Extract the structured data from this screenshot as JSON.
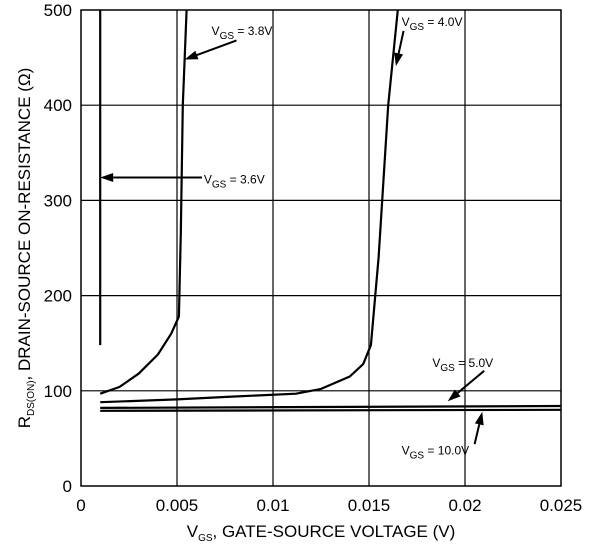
{
  "chart_data": {
    "type": "line",
    "xlabel": {
      "main": "V",
      "sub": "GS",
      "rest": ", GATE-SOURCE VOLTAGE (V)"
    },
    "ylabel": {
      "main": "R",
      "sub": "DS(ON)",
      "rest": ", DRAIN-SOURCE ON-RESISTANCE (Ω)"
    },
    "xlim": [
      0,
      0.025
    ],
    "ylim": [
      0,
      500
    ],
    "x_ticks": [
      0,
      0.005,
      0.01,
      0.015,
      0.02,
      0.025
    ],
    "x_tick_labels": [
      "0",
      "0.005",
      "0.01",
      "0.015",
      "0.02",
      "0.025"
    ],
    "y_ticks": [
      0,
      100,
      200,
      300,
      400,
      500
    ],
    "y_tick_labels": [
      "0",
      "100",
      "200",
      "300",
      "400",
      "500"
    ],
    "grid": true,
    "series": [
      {
        "id": "vgs-3-6",
        "label": {
          "main": "V",
          "sub": "GS",
          "rest": " = 3.6V"
        },
        "points": [
          [
            0.001,
            148
          ],
          [
            0.001,
            500
          ]
        ],
        "arrow": {
          "from": [
            0.0063,
            324
          ],
          "to": [
            0.001,
            324
          ]
        },
        "label_at": [
          0.0064,
          318
        ]
      },
      {
        "id": "vgs-3-8",
        "label": {
          "main": "V",
          "sub": "GS",
          "rest": " = 3.8V"
        },
        "points": [
          [
            0.001,
            97
          ],
          [
            0.002,
            104
          ],
          [
            0.003,
            118
          ],
          [
            0.004,
            138
          ],
          [
            0.0047,
            160
          ],
          [
            0.0051,
            178
          ],
          [
            0.0052,
            265
          ],
          [
            0.0053,
            400
          ],
          [
            0.0055,
            500
          ]
        ],
        "arrow": {
          "from": [
            0.0081,
            468
          ],
          "to": [
            0.0054,
            448
          ]
        },
        "label_at": [
          0.0068,
          474
        ]
      },
      {
        "id": "vgs-4-0",
        "label": {
          "main": "V",
          "sub": "GS",
          "rest": " = 4.0V"
        },
        "points": [
          [
            0.001,
            88
          ],
          [
            0.005,
            91
          ],
          [
            0.008,
            94
          ],
          [
            0.0112,
            97
          ],
          [
            0.0125,
            102
          ],
          [
            0.014,
            115
          ],
          [
            0.0147,
            128
          ],
          [
            0.0151,
            148
          ],
          [
            0.0155,
            240
          ],
          [
            0.016,
            400
          ],
          [
            0.0165,
            500
          ]
        ],
        "arrow": {
          "from": [
            0.0168,
            478
          ],
          "to": [
            0.0164,
            441
          ]
        },
        "label_at": [
          0.0167,
          483
        ]
      },
      {
        "id": "vgs-5-0",
        "label": {
          "main": "V",
          "sub": "GS",
          "rest": " = 5.0V"
        },
        "points": [
          [
            0.001,
            82
          ],
          [
            0.025,
            84
          ]
        ],
        "arrow": {
          "from": [
            0.021,
            121
          ],
          "to": [
            0.0191,
            89
          ]
        },
        "label_at": [
          0.0183,
          125
        ]
      },
      {
        "id": "vgs-10-0",
        "label": {
          "main": "V",
          "sub": "GS",
          "rest": " = 10.0V"
        },
        "points": [
          [
            0.001,
            79
          ],
          [
            0.025,
            80
          ]
        ],
        "arrow": {
          "from": [
            0.0205,
            44
          ],
          "to": [
            0.0209,
            78
          ]
        },
        "label_at": [
          0.0167,
          33
        ]
      }
    ]
  }
}
